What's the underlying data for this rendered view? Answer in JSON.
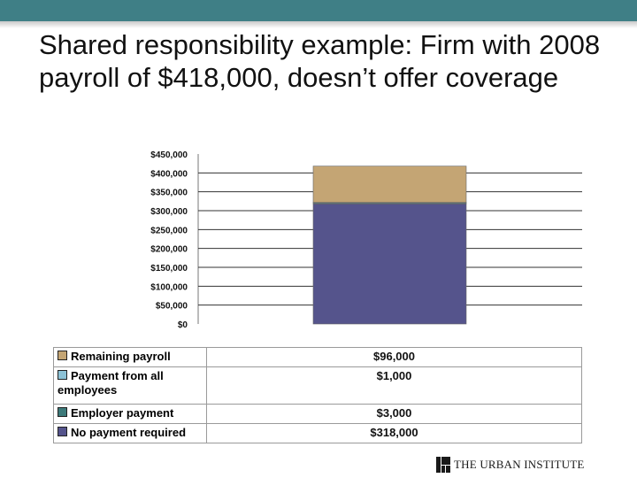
{
  "slide": {
    "title": "Shared responsibility example: Firm with 2008 payroll of $418,000, doesn’t offer coverage",
    "brand": "THE URBAN INSTITUTE"
  },
  "colors": {
    "remaining_payroll": "#c4a574",
    "payment_all_employees": "#8cc2d6",
    "employer_payment": "#3d7a7a",
    "no_payment_required": "#55548c"
  },
  "chart_data": {
    "type": "bar",
    "stacked": true,
    "categories": [
      ""
    ],
    "series": [
      {
        "name": "No payment required",
        "values": [
          318000
        ],
        "label": "$318,000"
      },
      {
        "name": "Employer payment",
        "values": [
          3000
        ],
        "label": "$3,000"
      },
      {
        "name": "Payment from all employees",
        "values": [
          1000
        ],
        "label": "$1,000"
      },
      {
        "name": "Remaining payroll",
        "values": [
          96000
        ],
        "label": "$96,000"
      }
    ],
    "legend_order": [
      {
        "name": "Remaining payroll",
        "label": "$96,000"
      },
      {
        "name": "Payment from all employees",
        "label": "$1,000"
      },
      {
        "name": "Employer payment",
        "label": "$3,000"
      },
      {
        "name": "No payment required",
        "label": "$318,000"
      }
    ],
    "ylim": [
      0,
      450000
    ],
    "yticks": [
      "$0",
      "$50,000",
      "$100,000",
      "$150,000",
      "$200,000",
      "$250,000",
      "$300,000",
      "$350,000",
      "$400,000",
      "$450,000"
    ],
    "ytick_values": [
      0,
      50000,
      100000,
      150000,
      200000,
      250000,
      300000,
      350000,
      400000,
      450000
    ],
    "grid": true,
    "legend": "data-table-below",
    "title": "",
    "xlabel": "",
    "ylabel": ""
  }
}
